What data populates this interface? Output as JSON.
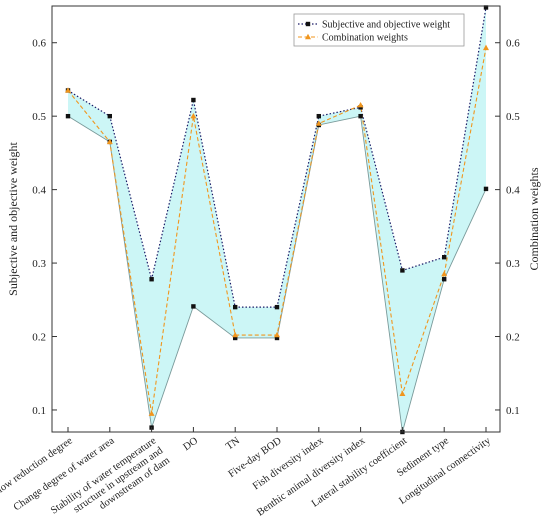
{
  "chart_data": {
    "type": "line",
    "categories": [
      "Flow reduction degree",
      "Change degree of water area",
      [
        "Stability of water temperature",
        "structure in upstream and",
        "downstream of dam"
      ],
      "DO",
      "TN",
      "Five-day BOD",
      "Fish diversity index",
      "Benthic animal diversity index",
      "Lateral stability coefficient",
      "Sediment type",
      "Longitudinal connectivity"
    ],
    "series": [
      {
        "name": "Subjective and objective weight",
        "color": "#1a1a66",
        "marker": "square",
        "line_style": "dotted",
        "upper": [
          0.535,
          0.5,
          0.278,
          0.522,
          0.24,
          0.24,
          0.5,
          0.512,
          0.29,
          0.308,
          0.648
        ],
        "lower": [
          0.5,
          0.465,
          0.076,
          0.241,
          0.198,
          0.198,
          0.488,
          0.5,
          0.07,
          0.278,
          0.401
        ]
      },
      {
        "name": "Combination weights",
        "color": "#f0961e",
        "marker": "triangle",
        "line_style": "dashed",
        "values": [
          0.535,
          0.465,
          0.095,
          0.5,
          0.202,
          0.202,
          0.49,
          0.515,
          0.122,
          0.285,
          0.593
        ]
      }
    ],
    "band_fill": "#ccf6f6",
    "ylabel_left": "Subjective and objective weight",
    "ylabel_right": "Combination weights",
    "ylim": [
      0.07,
      0.65
    ],
    "yticks": [
      0.1,
      0.2,
      0.3,
      0.4,
      0.5,
      0.6
    ],
    "ytick_labels": [
      "0.1",
      "0.2",
      "0.3",
      "0.4",
      "0.5",
      "0.6"
    ],
    "legend_position": "top-right",
    "grid": false
  }
}
